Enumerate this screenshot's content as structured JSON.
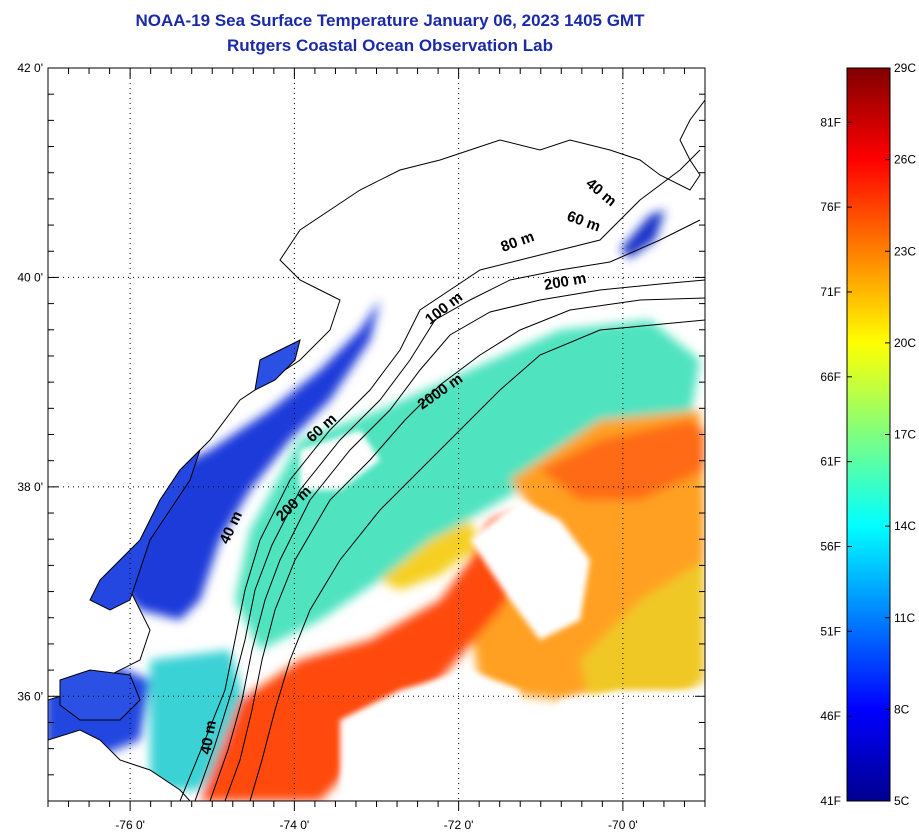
{
  "title": {
    "line1": "NOAA-19 Sea Surface Temperature January 06, 2023 1405 GMT",
    "line2": "Rutgers Coastal Ocean Observation Lab"
  },
  "map": {
    "lon_range": [
      -77.0,
      -69.0
    ],
    "lat_range": [
      35.0,
      42.0
    ],
    "lon_ticks": [
      {
        "value": -76,
        "label": "-76 0'"
      },
      {
        "value": -74,
        "label": "-74 0'"
      },
      {
        "value": -72,
        "label": "-72 0'"
      },
      {
        "value": -70,
        "label": "-70 0'"
      }
    ],
    "lat_ticks": [
      {
        "value": 42,
        "label": "42 0'"
      },
      {
        "value": 40,
        "label": "40 0'"
      },
      {
        "value": 38,
        "label": "38 0'"
      },
      {
        "value": 36,
        "label": "36 0'"
      }
    ],
    "grid": "dotted",
    "contour_labels": [
      "40 m",
      "60 m",
      "80 m",
      "200 m",
      "100 m",
      "2000 m",
      "60 m",
      "200 m",
      "40 m",
      "40 m"
    ]
  },
  "colorbar": {
    "min_c": 5,
    "max_c": 29,
    "min_f": 41,
    "max_f": 84.2,
    "celsius_labels": [
      "29C",
      "26C",
      "23C",
      "20C",
      "17C",
      "14C",
      "11C",
      "8C",
      "5C"
    ],
    "fahrenheit_labels": [
      "81F",
      "76F",
      "71F",
      "66F",
      "61F",
      "56F",
      "51F",
      "46F",
      "41F"
    ],
    "fahrenheit_values": [
      81,
      76,
      71,
      66,
      61,
      56,
      51,
      46,
      41
    ],
    "colormap": "jet",
    "colors": {
      "dark_blue": "#00008f",
      "blue": "#0000ff",
      "cyan": "#00ffff",
      "yellow": "#ffff00",
      "orange": "#ff8000",
      "red": "#ff0000",
      "dark_red": "#800000"
    }
  }
}
